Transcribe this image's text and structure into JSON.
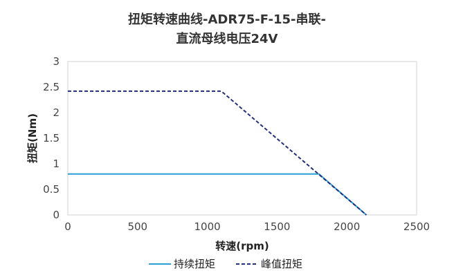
{
  "chart_data": {
    "type": "line",
    "title_line1": "扭矩转速曲线-ADR75-F-15-串联-",
    "title_line2": "直流母线电压24V",
    "xlabel": "转速(rpm)",
    "ylabel": "扭矩(Nm)",
    "xlim": [
      0,
      2500
    ],
    "ylim": [
      0,
      3
    ],
    "xticks": [
      0,
      500,
      1000,
      1500,
      2000,
      2500
    ],
    "yticks": [
      0,
      0.5,
      1,
      1.5,
      2,
      2.5,
      3
    ],
    "grid": false,
    "legend_position": "bottom",
    "series": [
      {
        "name": "持续扭矩",
        "color": "#2a9fd6",
        "style": "solid",
        "points": [
          [
            0,
            0.8
          ],
          [
            1800,
            0.8
          ],
          [
            2140,
            0
          ]
        ]
      },
      {
        "name": "峰值扭矩",
        "color": "#22307a",
        "style": "dashed",
        "points": [
          [
            0,
            2.42
          ],
          [
            1100,
            2.42
          ],
          [
            2140,
            0
          ]
        ]
      }
    ]
  }
}
